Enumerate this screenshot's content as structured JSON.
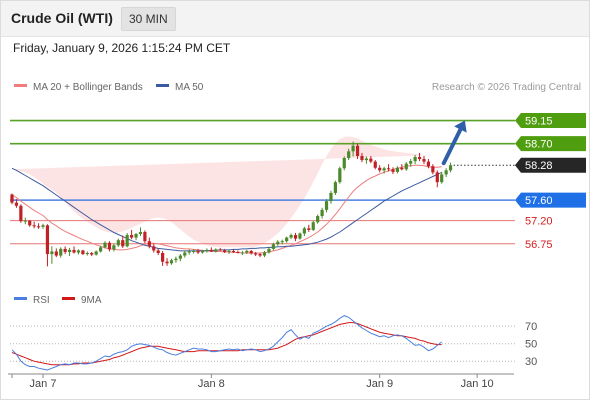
{
  "header": {
    "instrument": "Crude Oil (WTI)",
    "interval": "30 MIN",
    "datetime": "Friday, January 9, 2026 1:15:24 PM CET"
  },
  "colors": {
    "resistance": "#5aa12a",
    "pivot": "#4a7fe0",
    "support": "#e87575",
    "ma20": "#ef7d7d",
    "bollinger_fill": "#fde4e4",
    "ma50": "#3c5aa0",
    "bull": "#4a8a2a",
    "bear": "#c02026",
    "rsi": "#4a7fe0",
    "rsi_ma": "#d21818",
    "arrow": "#2e5fa8",
    "last_price": "#2b2b2b"
  },
  "chart_data": [
    {
      "type": "candlestick",
      "title": "Crude Oil (WTI)",
      "interval": "30 MIN",
      "x_tick_labels": [
        "Jan 7",
        "Jan 8",
        "Jan 9",
        "Jan 10"
      ],
      "x_tick_index": [
        7,
        45,
        83,
        105
      ],
      "ylim": [
        56.2,
        59.55
      ],
      "ohlc": [
        [
          57.71,
          57.73,
          57.52,
          57.55
        ],
        [
          57.55,
          57.62,
          57.45,
          57.49
        ],
        [
          57.49,
          57.52,
          57.16,
          57.19
        ],
        [
          57.19,
          57.26,
          57.13,
          57.2
        ],
        [
          57.2,
          57.21,
          57.08,
          57.11
        ],
        [
          57.11,
          57.18,
          57.05,
          57.09
        ],
        [
          57.09,
          57.15,
          57.04,
          57.08
        ],
        [
          57.08,
          57.14,
          57.04,
          57.11
        ],
        [
          57.11,
          57.13,
          56.31,
          56.55
        ],
        [
          56.55,
          56.7,
          56.36,
          56.6
        ],
        [
          56.6,
          56.66,
          56.49,
          56.52
        ],
        [
          56.52,
          56.68,
          56.48,
          56.65
        ],
        [
          56.65,
          56.7,
          56.55,
          56.59
        ],
        [
          56.59,
          56.67,
          56.51,
          56.63
        ],
        [
          56.63,
          56.7,
          56.56,
          56.58
        ],
        [
          56.58,
          56.64,
          56.54,
          56.62
        ],
        [
          56.62,
          56.63,
          56.53,
          56.55
        ],
        [
          56.55,
          56.6,
          56.52,
          56.57
        ],
        [
          56.57,
          56.59,
          56.51,
          56.54
        ],
        [
          56.54,
          56.62,
          56.52,
          56.6
        ],
        [
          56.6,
          56.71,
          56.58,
          56.68
        ],
        [
          56.68,
          56.8,
          56.66,
          56.77
        ],
        [
          56.77,
          56.8,
          56.6,
          56.64
        ],
        [
          56.64,
          56.75,
          56.6,
          56.72
        ],
        [
          56.72,
          56.85,
          56.69,
          56.82
        ],
        [
          56.82,
          56.91,
          56.67,
          56.7
        ],
        [
          56.7,
          56.96,
          56.68,
          56.92
        ],
        [
          56.92,
          57.02,
          56.84,
          56.87
        ],
        [
          56.87,
          56.96,
          56.82,
          56.94
        ],
        [
          56.94,
          57.07,
          56.9,
          56.98
        ],
        [
          56.98,
          57.01,
          56.76,
          56.8
        ],
        [
          56.8,
          56.87,
          56.66,
          56.7
        ],
        [
          56.7,
          56.75,
          56.58,
          56.62
        ],
        [
          56.62,
          56.66,
          56.53,
          56.57
        ],
        [
          56.57,
          56.61,
          56.32,
          56.4
        ],
        [
          56.4,
          56.47,
          56.32,
          56.37
        ],
        [
          56.37,
          56.46,
          56.34,
          56.43
        ],
        [
          56.43,
          56.5,
          56.38,
          56.46
        ],
        [
          56.46,
          56.55,
          56.41,
          56.52
        ],
        [
          56.52,
          56.62,
          56.48,
          56.58
        ],
        [
          56.58,
          56.64,
          56.54,
          56.6
        ],
        [
          56.6,
          56.64,
          56.56,
          56.61
        ],
        [
          56.61,
          56.65,
          56.55,
          56.58
        ],
        [
          56.58,
          56.63,
          56.56,
          56.61
        ],
        [
          56.61,
          56.66,
          56.58,
          56.63
        ],
        [
          56.63,
          56.68,
          56.59,
          56.6
        ],
        [
          56.6,
          56.66,
          56.58,
          56.64
        ],
        [
          56.64,
          56.67,
          56.61,
          56.62
        ],
        [
          56.62,
          56.65,
          56.57,
          56.59
        ],
        [
          56.59,
          56.63,
          56.55,
          56.61
        ],
        [
          56.61,
          56.64,
          56.57,
          56.59
        ],
        [
          56.59,
          56.62,
          56.56,
          56.57
        ],
        [
          56.57,
          56.61,
          56.53,
          56.58
        ],
        [
          56.58,
          56.63,
          56.55,
          56.61
        ],
        [
          56.61,
          56.63,
          56.54,
          56.56
        ],
        [
          56.56,
          56.59,
          56.51,
          56.55
        ],
        [
          56.55,
          56.57,
          56.49,
          56.52
        ],
        [
          56.52,
          56.61,
          56.49,
          56.58
        ],
        [
          56.58,
          56.68,
          56.56,
          56.65
        ],
        [
          56.65,
          56.77,
          56.62,
          56.74
        ],
        [
          56.74,
          56.82,
          56.71,
          56.79
        ],
        [
          56.79,
          56.83,
          56.74,
          56.8
        ],
        [
          56.8,
          56.89,
          56.77,
          56.87
        ],
        [
          56.87,
          56.95,
          56.84,
          56.92
        ],
        [
          56.92,
          56.96,
          56.8,
          56.85
        ],
        [
          56.85,
          56.97,
          56.83,
          56.95
        ],
        [
          56.95,
          57.08,
          56.9,
          57.05
        ],
        [
          57.05,
          57.12,
          56.98,
          57.02
        ],
        [
          57.02,
          57.2,
          57.0,
          57.17
        ],
        [
          57.17,
          57.32,
          57.14,
          57.29
        ],
        [
          57.29,
          57.45,
          57.24,
          57.41
        ],
        [
          57.41,
          57.62,
          57.36,
          57.58
        ],
        [
          57.58,
          57.78,
          57.53,
          57.74
        ],
        [
          57.74,
          57.98,
          57.7,
          57.95
        ],
        [
          57.95,
          58.25,
          57.92,
          58.22
        ],
        [
          58.22,
          58.45,
          58.18,
          58.42
        ],
        [
          58.42,
          58.6,
          58.38,
          58.55
        ],
        [
          58.55,
          58.74,
          58.45,
          58.66
        ],
        [
          58.66,
          58.7,
          58.4,
          58.46
        ],
        [
          58.46,
          58.52,
          58.34,
          58.38
        ],
        [
          58.38,
          58.45,
          58.31,
          58.41
        ],
        [
          58.41,
          58.46,
          58.32,
          58.35
        ],
        [
          58.35,
          58.38,
          58.2,
          58.23
        ],
        [
          58.23,
          58.28,
          58.14,
          58.18
        ],
        [
          58.18,
          58.25,
          58.12,
          58.22
        ],
        [
          58.22,
          58.3,
          58.16,
          58.2
        ],
        [
          58.2,
          58.24,
          58.11,
          58.15
        ],
        [
          58.15,
          58.26,
          58.12,
          58.23
        ],
        [
          58.23,
          58.3,
          58.18,
          58.2
        ],
        [
          58.2,
          58.34,
          58.17,
          58.31
        ],
        [
          58.31,
          58.4,
          58.25,
          58.36
        ],
        [
          58.36,
          58.48,
          58.3,
          58.44
        ],
        [
          58.44,
          58.52,
          58.36,
          58.4
        ],
        [
          58.4,
          58.46,
          58.3,
          58.35
        ],
        [
          58.35,
          58.4,
          58.22,
          58.26
        ],
        [
          58.26,
          58.3,
          58.1,
          58.14
        ],
        [
          58.14,
          58.18,
          57.85,
          57.95
        ],
        [
          57.95,
          58.15,
          57.92,
          58.1
        ],
        [
          58.1,
          58.22,
          58.05,
          58.18
        ],
        [
          58.18,
          58.33,
          58.14,
          58.28
        ]
      ],
      "ma20": [
        57.7,
        57.65,
        57.58,
        57.52,
        57.46,
        57.4,
        57.35,
        57.3,
        57.22,
        57.15,
        57.1,
        57.04,
        56.99,
        56.95,
        56.91,
        56.87,
        56.83,
        56.8,
        56.76,
        56.73,
        56.7,
        56.67,
        56.65,
        56.64,
        56.63,
        56.63,
        56.64,
        56.66,
        56.68,
        56.71,
        56.74,
        56.76,
        56.76,
        56.75,
        56.73,
        56.71,
        56.69,
        56.67,
        56.66,
        56.65,
        56.65,
        56.64,
        56.63,
        56.62,
        56.61,
        56.6,
        56.6,
        56.6,
        56.59,
        56.59,
        56.58,
        56.58,
        56.57,
        56.57,
        56.57,
        56.57,
        56.57,
        56.58,
        56.59,
        56.61,
        56.63,
        56.66,
        56.69,
        56.72,
        56.75,
        56.79,
        56.83,
        56.87,
        56.92,
        56.98,
        57.05,
        57.13,
        57.22,
        57.32,
        57.43,
        57.55,
        57.66,
        57.77,
        57.85,
        57.92,
        57.98,
        58.03,
        58.07,
        58.11,
        58.14,
        58.17,
        58.2,
        58.22,
        58.24,
        58.26,
        58.27,
        58.28,
        58.28,
        58.27,
        58.25,
        58.24,
        58.24,
        58.25
      ],
      "bollinger_upper": [
        58.2,
        58.18,
        58.16,
        58.14,
        58.1,
        58.05,
        57.99,
        57.92,
        57.85,
        57.8,
        57.74,
        57.66,
        57.56,
        57.46,
        57.38,
        57.3,
        57.24,
        57.18,
        57.12,
        57.07,
        57.02,
        56.99,
        56.97,
        56.96,
        56.97,
        56.99,
        57.02,
        57.06,
        57.1,
        57.14,
        57.18,
        57.22,
        57.25,
        57.26,
        57.25,
        57.22,
        57.17,
        57.1,
        57.03,
        56.96,
        56.89,
        56.83,
        56.79,
        56.75,
        56.72,
        56.7,
        56.69,
        56.68,
        56.68,
        56.68,
        56.68,
        56.68,
        56.68,
        56.68,
        56.68,
        56.69,
        56.72,
        56.76,
        56.82,
        56.88,
        56.95,
        57.04,
        57.14,
        57.25,
        57.37,
        57.5,
        57.64,
        57.79,
        57.95,
        58.12,
        58.3,
        58.46,
        58.6,
        58.71,
        58.79,
        58.83,
        58.84,
        58.83,
        58.8,
        58.76,
        58.72,
        58.68,
        58.65,
        58.62,
        58.59,
        58.57,
        58.55,
        58.54,
        58.53,
        58.52,
        58.51,
        58.5,
        58.49,
        58.48,
        58.48,
        58.48,
        58.48,
        58.48
      ],
      "bollinger_lower": [
        57.3,
        57.2,
        57.08,
        56.96,
        56.86,
        56.76,
        56.68,
        56.61,
        56.52,
        56.45,
        56.4,
        56.37,
        56.36,
        56.37,
        56.4,
        56.43,
        56.46,
        56.48,
        56.5,
        56.52,
        56.52,
        56.5,
        56.47,
        56.44,
        56.41,
        56.39,
        56.37,
        56.35,
        56.34,
        56.33,
        56.32,
        56.31,
        56.3,
        56.3,
        56.31,
        56.33,
        56.36,
        56.4,
        56.44,
        56.48,
        56.51,
        56.53,
        56.54,
        56.54,
        56.53,
        56.52,
        56.51,
        56.51,
        56.5,
        56.49,
        56.48,
        56.47,
        56.46,
        56.45,
        56.44,
        56.43,
        56.42,
        56.4,
        56.38,
        56.36,
        56.34,
        56.32,
        56.31,
        56.3,
        56.3,
        56.31,
        56.32,
        56.34,
        56.37,
        56.41,
        56.46,
        56.53,
        56.62,
        56.73,
        56.86,
        57.0,
        57.15,
        57.3,
        57.43,
        57.55,
        57.65,
        57.73,
        57.8,
        57.86,
        57.9,
        57.93,
        57.95,
        57.96,
        57.96,
        57.96,
        57.96,
        57.95,
        57.93,
        57.91,
        57.89,
        57.89,
        57.9,
        57.92
      ],
      "ma50": [
        58.22,
        58.18,
        58.13,
        58.08,
        58.03,
        57.98,
        57.93,
        57.88,
        57.82,
        57.76,
        57.7,
        57.64,
        57.58,
        57.52,
        57.46,
        57.4,
        57.34,
        57.28,
        57.22,
        57.17,
        57.12,
        57.07,
        57.02,
        56.97,
        56.93,
        56.89,
        56.85,
        56.81,
        56.78,
        56.75,
        56.72,
        56.7,
        56.68,
        56.66,
        56.65,
        56.64,
        56.63,
        56.62,
        56.61,
        56.61,
        56.61,
        56.61,
        56.61,
        56.61,
        56.61,
        56.62,
        56.62,
        56.63,
        56.63,
        56.63,
        56.64,
        56.64,
        56.65,
        56.65,
        56.66,
        56.66,
        56.67,
        56.67,
        56.68,
        56.68,
        56.69,
        56.69,
        56.7,
        56.7,
        56.71,
        56.72,
        56.73,
        56.74,
        56.76,
        56.78,
        56.81,
        56.84,
        56.88,
        56.93,
        56.98,
        57.04,
        57.1,
        57.16,
        57.22,
        57.28,
        57.34,
        57.4,
        57.46,
        57.52,
        57.58,
        57.63,
        57.68,
        57.73,
        57.78,
        57.82,
        57.86,
        57.9,
        57.94,
        57.98,
        58.02,
        58.06,
        58.1,
        58.14
      ],
      "levels": [
        {
          "value": 59.15,
          "label": "59.15",
          "kind": "resistance",
          "line": true
        },
        {
          "value": 58.7,
          "label": "58.70",
          "kind": "resistance",
          "line": true
        },
        {
          "value": 58.28,
          "label": "58.28",
          "kind": "last_price",
          "line": false
        },
        {
          "value": 57.6,
          "label": "57.60",
          "kind": "pivot",
          "line": true
        },
        {
          "value": 57.2,
          "label": "57.20",
          "kind": "support",
          "line": true
        },
        {
          "value": 56.75,
          "label": "56.75",
          "kind": "support",
          "line": true
        }
      ],
      "arrow": {
        "from_index": 97,
        "from_value": 58.28,
        "to_index": 102,
        "to_value": 59.15
      },
      "legend": [
        {
          "label": "MA 20 + Bollinger Bands",
          "color": "#ef7d7d"
        },
        {
          "label": "MA 50",
          "color": "#3c5aa0"
        }
      ],
      "watermark": "Research © 2026 Trading Central"
    },
    {
      "type": "line",
      "title": "RSI",
      "ylim": [
        20,
        85
      ],
      "y_ticks": [
        70,
        50,
        30
      ],
      "rsi": [
        43,
        38,
        30,
        26,
        24,
        24,
        22,
        21,
        20,
        22,
        24,
        26,
        27,
        26,
        28,
        28,
        27,
        27,
        28,
        30,
        33,
        36,
        35,
        38,
        40,
        41,
        43,
        47,
        49,
        50,
        49,
        48,
        46,
        44,
        43,
        40,
        38,
        37,
        39,
        41,
        43,
        45,
        44,
        44,
        43,
        41,
        41,
        42,
        43,
        44,
        43,
        44,
        42,
        43,
        44,
        43,
        41,
        42,
        44,
        47,
        52,
        57,
        63,
        66,
        60,
        55,
        58,
        56,
        62,
        64,
        67,
        70,
        72,
        75,
        79,
        82,
        80,
        76,
        72,
        68,
        65,
        62,
        60,
        58,
        59,
        57,
        59,
        60,
        59,
        56,
        52,
        48,
        49,
        46,
        42,
        44,
        48,
        52
      ],
      "rsi_ma": [
        40,
        38,
        36,
        34,
        32,
        30,
        29,
        28,
        27,
        26,
        26,
        26,
        26,
        26,
        27,
        27,
        28,
        28,
        28,
        29,
        30,
        31,
        32,
        34,
        35,
        37,
        39,
        41,
        43,
        45,
        46,
        47,
        47,
        47,
        46,
        45,
        44,
        43,
        42,
        41,
        41,
        41,
        42,
        42,
        42,
        42,
        42,
        42,
        42,
        42,
        42,
        42,
        43,
        43,
        43,
        43,
        43,
        43,
        43,
        44,
        45,
        47,
        49,
        52,
        55,
        57,
        58,
        59,
        60,
        62,
        64,
        66,
        68,
        70,
        72,
        73,
        74,
        74,
        73,
        71,
        69,
        67,
        65,
        63,
        62,
        61,
        60,
        59,
        59,
        58,
        57,
        56,
        54,
        53,
        51,
        50,
        49,
        49
      ],
      "legend": [
        {
          "label": "RSI",
          "color": "#4a7fe0"
        },
        {
          "label": "9MA",
          "color": "#d21818"
        }
      ]
    }
  ]
}
